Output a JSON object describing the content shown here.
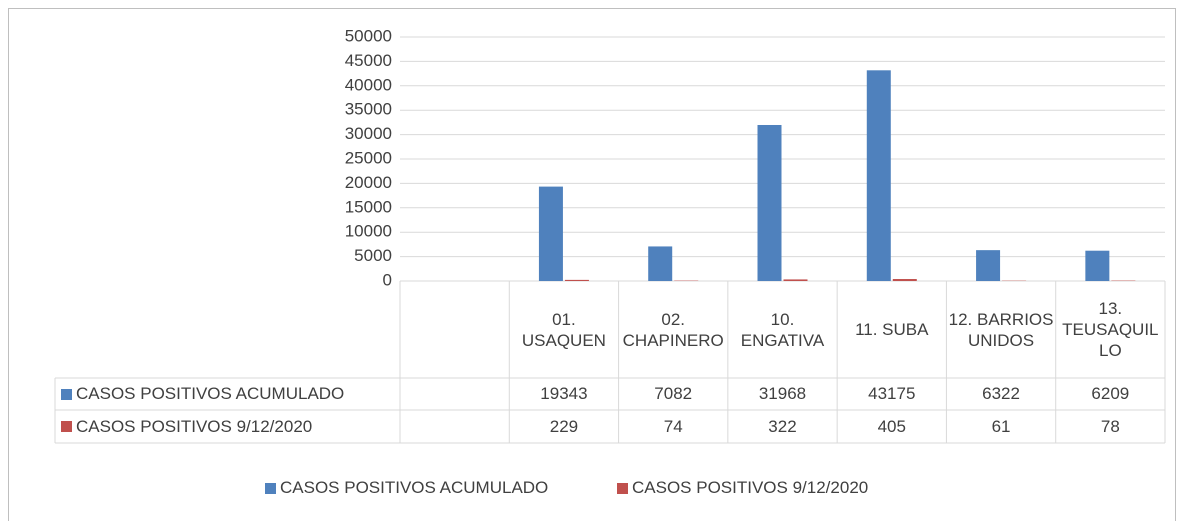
{
  "chart_data": {
    "type": "bar",
    "categories": [
      null,
      "01. USAQUEN",
      "02. CHAPINERO",
      "10. ENGATIVA",
      "11. SUBA",
      "12. BARRIOS UNIDOS",
      "13. TEUSAQUILLO"
    ],
    "series": [
      {
        "name": "CASOS POSITIVOS ACUMULADO",
        "color": "#4f81bd",
        "values": [
          null,
          19343,
          7082,
          31968,
          43175,
          6322,
          6209
        ]
      },
      {
        "name": "CASOS POSITIVOS 9/12/2020",
        "color": "#c0504d",
        "values": [
          null,
          229,
          74,
          322,
          405,
          61,
          78
        ]
      }
    ],
    "ylim": [
      0,
      50000
    ],
    "yticks": [
      0,
      5000,
      10000,
      15000,
      20000,
      25000,
      30000,
      35000,
      40000,
      45000,
      50000
    ],
    "grid": true,
    "legend": "bottom"
  }
}
